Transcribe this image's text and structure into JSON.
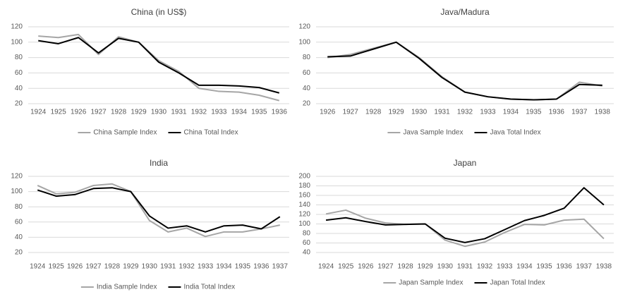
{
  "chart_data": [
    {
      "type": "line",
      "title": "China (in US$)",
      "categories": [
        "1924",
        "1925",
        "1926",
        "1927",
        "1928",
        "1929",
        "1930",
        "1931",
        "1932",
        "1933",
        "1934",
        "1935",
        "1936"
      ],
      "series": [
        {
          "name": "China Sample Index",
          "color": "#a6a6a6",
          "values": [
            108,
            106,
            110,
            84,
            107,
            100,
            76,
            62,
            40,
            36,
            35,
            31,
            24
          ]
        },
        {
          "name": "China Total Index",
          "color": "#000000",
          "values": [
            102,
            98,
            106,
            86,
            105,
            100,
            74,
            60,
            44,
            44,
            43,
            41,
            34
          ]
        }
      ],
      "ylim": [
        20,
        120
      ],
      "yticks": [
        20,
        40,
        60,
        80,
        100,
        120
      ],
      "grid": true,
      "legend": "bottom"
    },
    {
      "type": "line",
      "title": "Java/Madura",
      "categories": [
        "1926",
        "1927",
        "1928",
        "1929",
        "1930",
        "1931",
        "1932",
        "1933",
        "1934",
        "1935",
        "1936",
        "1937",
        "1938"
      ],
      "series": [
        {
          "name": "Java Sample Index",
          "color": "#a6a6a6",
          "values": [
            80,
            84,
            92,
            100,
            80,
            55,
            35,
            29,
            26,
            25,
            26,
            48,
            43
          ]
        },
        {
          "name": "Java Total Index",
          "color": "#000000",
          "values": [
            81,
            82,
            91,
            100,
            79,
            54,
            35,
            29,
            26,
            25,
            26,
            45,
            44
          ]
        }
      ],
      "ylim": [
        20,
        120
      ],
      "yticks": [
        20,
        40,
        60,
        80,
        100,
        120
      ],
      "grid": true,
      "legend": "bottom"
    },
    {
      "type": "line",
      "title": "India",
      "categories": [
        "1924",
        "1925",
        "1926",
        "1927",
        "1928",
        "1929",
        "1930",
        "1931",
        "1932",
        "1933",
        "1934",
        "1935",
        "1936",
        "1937"
      ],
      "series": [
        {
          "name": "India Sample Index",
          "color": "#a6a6a6",
          "values": [
            108,
            97,
            99,
            108,
            110,
            100,
            62,
            47,
            52,
            41,
            47,
            47,
            51,
            56
          ]
        },
        {
          "name": "India Total Index",
          "color": "#000000",
          "values": [
            102,
            94,
            96,
            104,
            105,
            100,
            68,
            52,
            55,
            47,
            55,
            56,
            51,
            67
          ]
        }
      ],
      "ylim": [
        20,
        120
      ],
      "yticks": [
        20,
        40,
        60,
        80,
        100,
        120
      ],
      "grid": true,
      "legend": "bottom"
    },
    {
      "type": "line",
      "title": "Japan",
      "categories": [
        "1924",
        "1925",
        "1926",
        "1927",
        "1928",
        "1929",
        "1930",
        "1931",
        "1932",
        "1933",
        "1934",
        "1935",
        "1936",
        "1937",
        "1938"
      ],
      "series": [
        {
          "name": "Japan Sample Index",
          "color": "#a6a6a6",
          "values": [
            121,
            129,
            112,
            102,
            99,
            100,
            66,
            53,
            62,
            82,
            99,
            98,
            108,
            110,
            69
          ]
        },
        {
          "name": "Japan Total Index",
          "color": "#000000",
          "values": [
            108,
            113,
            105,
            98,
            99,
            100,
            70,
            61,
            69,
            88,
            107,
            118,
            133,
            176,
            140
          ]
        }
      ],
      "ylim": [
        40,
        200
      ],
      "yticks": [
        40,
        60,
        80,
        100,
        120,
        140,
        160,
        180,
        200
      ],
      "grid": true,
      "legend": "bottom"
    }
  ]
}
